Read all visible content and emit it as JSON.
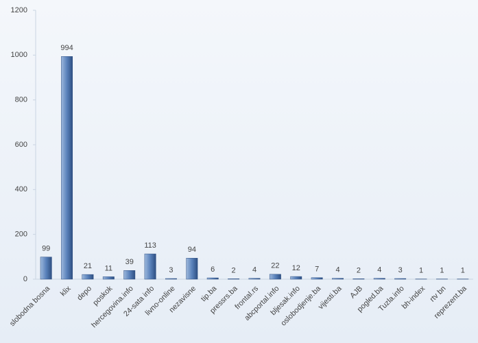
{
  "chart_data": {
    "type": "bar",
    "categories": [
      "slobodna bosna",
      "klix",
      "depo",
      "poskok",
      "hercegovina.info",
      "24-sata info",
      "livno-online",
      "nezavisne",
      "tip.ba",
      "pressrs.ba",
      "frontal.rs",
      "abcportal.info",
      "bljesak.info",
      "oslobodjenje.ba",
      "vijesti.ba",
      "AJB",
      "pogled.ba",
      "Tuzla.info",
      "bh-index",
      "rtv bn",
      "reprezent.ba"
    ],
    "values": [
      99,
      994,
      21,
      11,
      39,
      113,
      3,
      94,
      6,
      2,
      4,
      22,
      12,
      7,
      4,
      2,
      4,
      3,
      1,
      1,
      1
    ],
    "color": "#4a74b0",
    "ylim": [
      0,
      1200
    ],
    "yticks": [
      0,
      200,
      400,
      600,
      800,
      1000,
      1200
    ],
    "grid": false
  }
}
